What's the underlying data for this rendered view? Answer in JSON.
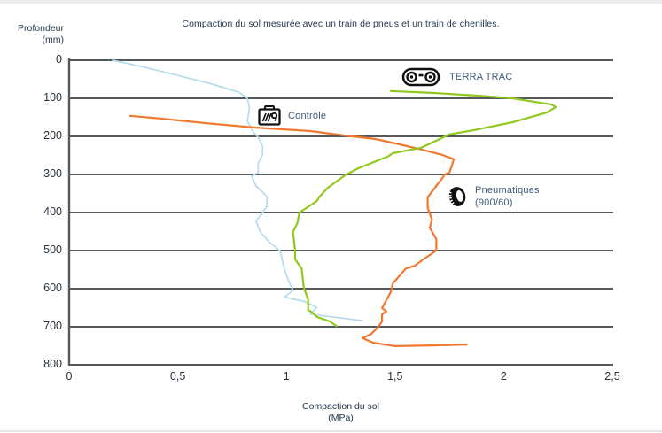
{
  "page": {
    "title": "Compaction du sol mesurée avec un train de pneus et un train de chenilles."
  },
  "axes": {
    "y_label_line1": "Profondeur",
    "y_label_line2": "(mm)",
    "x_label_line1": "Compaction du sol",
    "x_label_line2": "(MPa)",
    "x_ticks": [
      "0",
      "0,5",
      "1",
      "1,5",
      "2",
      "2,5"
    ],
    "y_ticks": [
      "0",
      "100",
      "200",
      "300",
      "400",
      "500",
      "600",
      "700",
      "800"
    ]
  },
  "legend": [
    {
      "id": "terra-trac",
      "icon": "track-icon",
      "label": "TERRA TRAC"
    },
    {
      "id": "controle",
      "icon": "control-box-icon",
      "label": "Contrôle"
    },
    {
      "id": "pneumatiques",
      "icon": "tire-icon",
      "label": "Pneumatiques",
      "label2": "(900/60)"
    }
  ],
  "colors": {
    "controle": "#b5dcec",
    "terra_trac": "#90c81e",
    "pneumatiques": "#f0782f",
    "gridline": "#54595e",
    "icon": "#111111"
  },
  "chart_data": {
    "type": "line",
    "title": "Compaction du sol mesurée avec un train de pneus et un train de chenilles.",
    "xlabel": "Compaction du sol (MPa)",
    "ylabel": "Profondeur (mm)",
    "xlim": [
      0,
      2.5
    ],
    "ylim": [
      0,
      800
    ],
    "y_inverted": true,
    "grid": "horizontal",
    "legend_position": "inside-plot",
    "series": [
      {
        "name": "Contrôle",
        "color": "#b5dcec",
        "points": [
          [
            0.2,
            0
          ],
          [
            0.33,
            16
          ],
          [
            0.5,
            40
          ],
          [
            0.66,
            63
          ],
          [
            0.78,
            84
          ],
          [
            0.82,
            100
          ],
          [
            0.83,
            126
          ],
          [
            0.82,
            160
          ],
          [
            0.85,
            191
          ],
          [
            0.87,
            202
          ],
          [
            0.89,
            226
          ],
          [
            0.89,
            249
          ],
          [
            0.87,
            270
          ],
          [
            0.87,
            295
          ],
          [
            0.84,
            305
          ],
          [
            0.86,
            330
          ],
          [
            0.91,
            358
          ],
          [
            0.91,
            384
          ],
          [
            0.89,
            400
          ],
          [
            0.86,
            423
          ],
          [
            0.88,
            451
          ],
          [
            0.92,
            477
          ],
          [
            0.97,
            500
          ],
          [
            0.98,
            523
          ],
          [
            0.99,
            547
          ],
          [
            1.01,
            580
          ],
          [
            1.03,
            605
          ],
          [
            0.99,
            622
          ],
          [
            1.08,
            633
          ],
          [
            1.14,
            649
          ],
          [
            1.11,
            667
          ],
          [
            1.35,
            684
          ]
        ]
      },
      {
        "name": "Pneumatiques (900/60)",
        "color": "#f0782f",
        "points": [
          [
            0.28,
            146
          ],
          [
            0.42,
            153
          ],
          [
            0.62,
            165
          ],
          [
            0.86,
            177
          ],
          [
            1.11,
            186
          ],
          [
            1.27,
            198
          ],
          [
            1.41,
            207
          ],
          [
            1.52,
            221
          ],
          [
            1.61,
            233
          ],
          [
            1.72,
            249
          ],
          [
            1.77,
            260
          ],
          [
            1.76,
            279
          ],
          [
            1.75,
            295
          ],
          [
            1.73,
            300
          ],
          [
            1.69,
            330
          ],
          [
            1.65,
            360
          ],
          [
            1.65,
            388
          ],
          [
            1.67,
            419
          ],
          [
            1.66,
            440
          ],
          [
            1.69,
            470
          ],
          [
            1.69,
            500
          ],
          [
            1.63,
            523
          ],
          [
            1.59,
            540
          ],
          [
            1.55,
            547
          ],
          [
            1.49,
            586
          ],
          [
            1.48,
            609
          ],
          [
            1.44,
            651
          ],
          [
            1.46,
            660
          ],
          [
            1.44,
            667
          ],
          [
            1.44,
            686
          ],
          [
            1.42,
            702
          ],
          [
            1.39,
            719
          ],
          [
            1.35,
            730
          ],
          [
            1.4,
            742
          ],
          [
            1.5,
            751
          ],
          [
            1.67,
            749
          ],
          [
            1.83,
            747
          ]
        ]
      },
      {
        "name": "TERRA TRAC",
        "color": "#90c81e",
        "points": [
          [
            1.48,
            81
          ],
          [
            1.68,
            86
          ],
          [
            1.88,
            93
          ],
          [
            2.04,
            100
          ],
          [
            2.14,
            109
          ],
          [
            2.22,
            116
          ],
          [
            2.24,
            123
          ],
          [
            2.2,
            137
          ],
          [
            2.04,
            163
          ],
          [
            1.86,
            184
          ],
          [
            1.75,
            195
          ],
          [
            1.68,
            214
          ],
          [
            1.62,
            230
          ],
          [
            1.49,
            244
          ],
          [
            1.47,
            252
          ],
          [
            1.33,
            284
          ],
          [
            1.27,
            302
          ],
          [
            1.19,
            335
          ],
          [
            1.15,
            360
          ],
          [
            1.14,
            370
          ],
          [
            1.06,
            400
          ],
          [
            1.05,
            428
          ],
          [
            1.03,
            451
          ],
          [
            1.04,
            500
          ],
          [
            1.04,
            523
          ],
          [
            1.07,
            547
          ],
          [
            1.08,
            598
          ],
          [
            1.1,
            628
          ],
          [
            1.1,
            656
          ],
          [
            1.12,
            663
          ],
          [
            1.14,
            674
          ],
          [
            1.2,
            686
          ],
          [
            1.23,
            698
          ]
        ]
      }
    ]
  }
}
